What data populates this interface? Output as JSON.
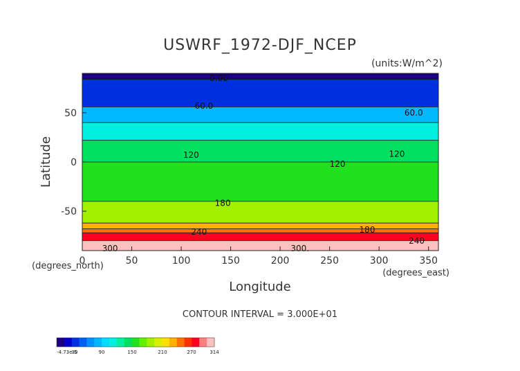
{
  "chart_data": {
    "type": "heatmap",
    "title": "USWRF_1972-DJF_NCEP",
    "units_label": "(units:W/m^2)",
    "xlabel": "Longitude",
    "ylabel": "Latitude",
    "x_unit_label": "(degrees_east)",
    "y_unit_label": "(degrees_north)",
    "xlim": [
      0,
      360
    ],
    "ylim": [
      -90,
      90
    ],
    "x_ticks": [
      0,
      50,
      100,
      150,
      200,
      250,
      300,
      350
    ],
    "y_ticks": [
      -50,
      0,
      50
    ],
    "contour_interval_text": "CONTOUR INTERVAL = 3.000E+01",
    "contour_labels": [
      {
        "text": "0.00",
        "lon": 138,
        "lat": 85
      },
      {
        "text": "60.0",
        "lon": 123,
        "lat": 57
      },
      {
        "text": "60.0",
        "lon": 335,
        "lat": 50
      },
      {
        "text": "120",
        "lon": 110,
        "lat": 7
      },
      {
        "text": "120",
        "lon": 258,
        "lat": -2
      },
      {
        "text": "120",
        "lon": 318,
        "lat": 8
      },
      {
        "text": "180",
        "lon": 142,
        "lat": -42
      },
      {
        "text": "180",
        "lon": 288,
        "lat": -69
      },
      {
        "text": "240",
        "lon": 118,
        "lat": -71
      },
      {
        "text": "240",
        "lon": 338,
        "lat": -80
      },
      {
        "text": "300",
        "lon": 28,
        "lat": -88
      },
      {
        "text": "300.",
        "lon": 220,
        "lat": -88
      }
    ],
    "latitude_bands": [
      {
        "lat_from": 84,
        "lat_to": 90,
        "value": 0
      },
      {
        "lat_from": 56,
        "lat_to": 84,
        "value": 30
      },
      {
        "lat_from": 40,
        "lat_to": 56,
        "value": 75
      },
      {
        "lat_from": 22,
        "lat_to": 40,
        "value": 105
      },
      {
        "lat_from": 0,
        "lat_to": 22,
        "value": 135
      },
      {
        "lat_from": -40,
        "lat_to": 0,
        "value": 150
      },
      {
        "lat_from": -62,
        "lat_to": -40,
        "value": 180
      },
      {
        "lat_from": -68,
        "lat_to": -62,
        "value": 225
      },
      {
        "lat_from": -72,
        "lat_to": -68,
        "value": 240
      },
      {
        "lat_from": -80,
        "lat_to": -72,
        "value": 280
      },
      {
        "lat_from": -90,
        "lat_to": -80,
        "value": 300
      }
    ],
    "colorbar": {
      "labels": [
        "-4.73e-5",
        "30",
        "90",
        "150",
        "210",
        "270",
        "314"
      ],
      "colors": [
        "#1a0080",
        "#0000c8",
        "#0030e0",
        "#0060f0",
        "#0090ff",
        "#00b8ff",
        "#00dcff",
        "#00f0e0",
        "#00f0a0",
        "#00e060",
        "#20e020",
        "#60f000",
        "#a0f000",
        "#d8f000",
        "#ffe000",
        "#ffb000",
        "#ff7000",
        "#ff3000",
        "#ff0020",
        "#ff8080",
        "#ffc0c0"
      ]
    }
  }
}
